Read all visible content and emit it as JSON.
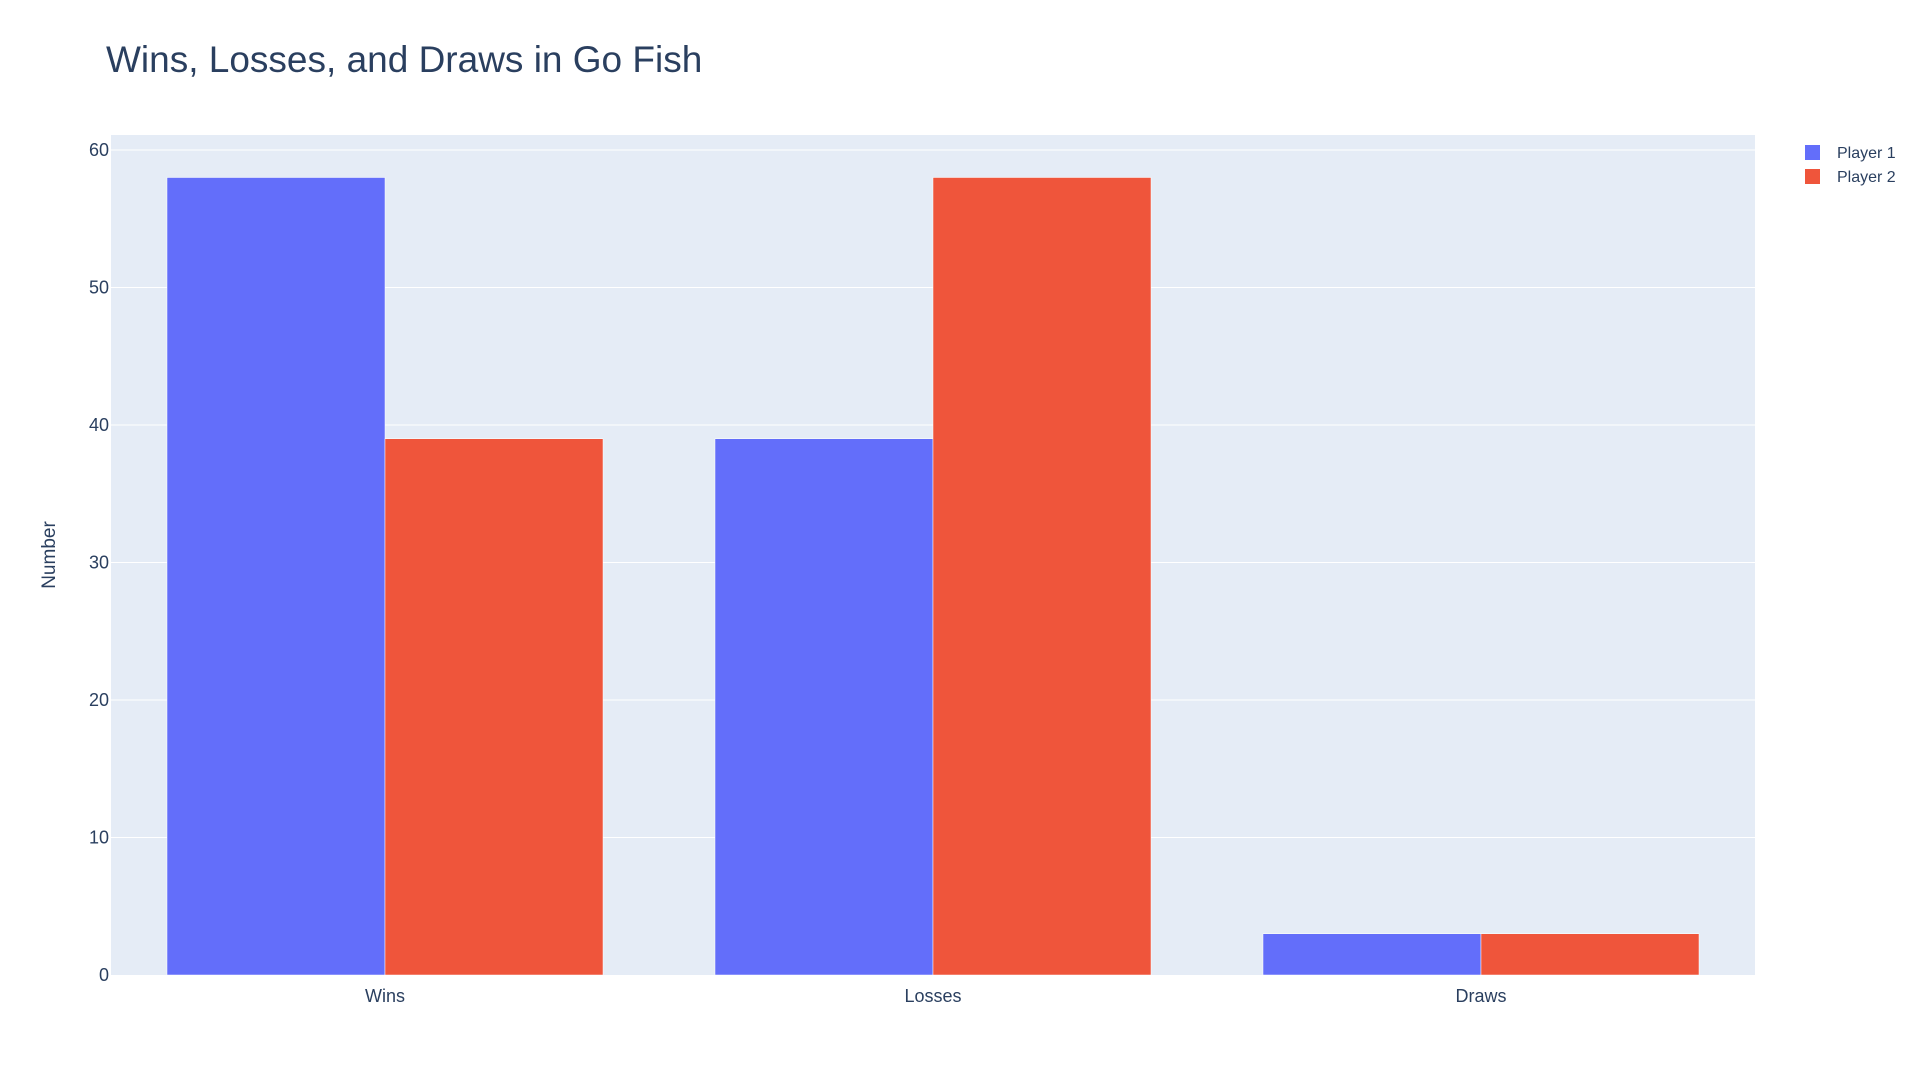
{
  "chart_data": {
    "type": "bar",
    "title": "Wins, Losses, and Draws in Go Fish",
    "xlabel": "",
    "ylabel": "Number",
    "categories": [
      "Wins",
      "Losses",
      "Draws"
    ],
    "series": [
      {
        "name": "Player 1",
        "values": [
          58,
          39,
          3
        ],
        "color": "#636efa"
      },
      {
        "name": "Player 2",
        "values": [
          39,
          58,
          3
        ],
        "color": "#ef553b"
      }
    ],
    "ylim": [
      0,
      61
    ],
    "yticks": [
      0,
      10,
      20,
      30,
      40,
      50,
      60
    ],
    "grid": true,
    "legend_position": "top-right",
    "colors": {
      "plot_background": "#e5ecf6",
      "gridline": "#ffffff",
      "text": "#2a3f5f",
      "tick_text": "#2a3f5f"
    }
  }
}
